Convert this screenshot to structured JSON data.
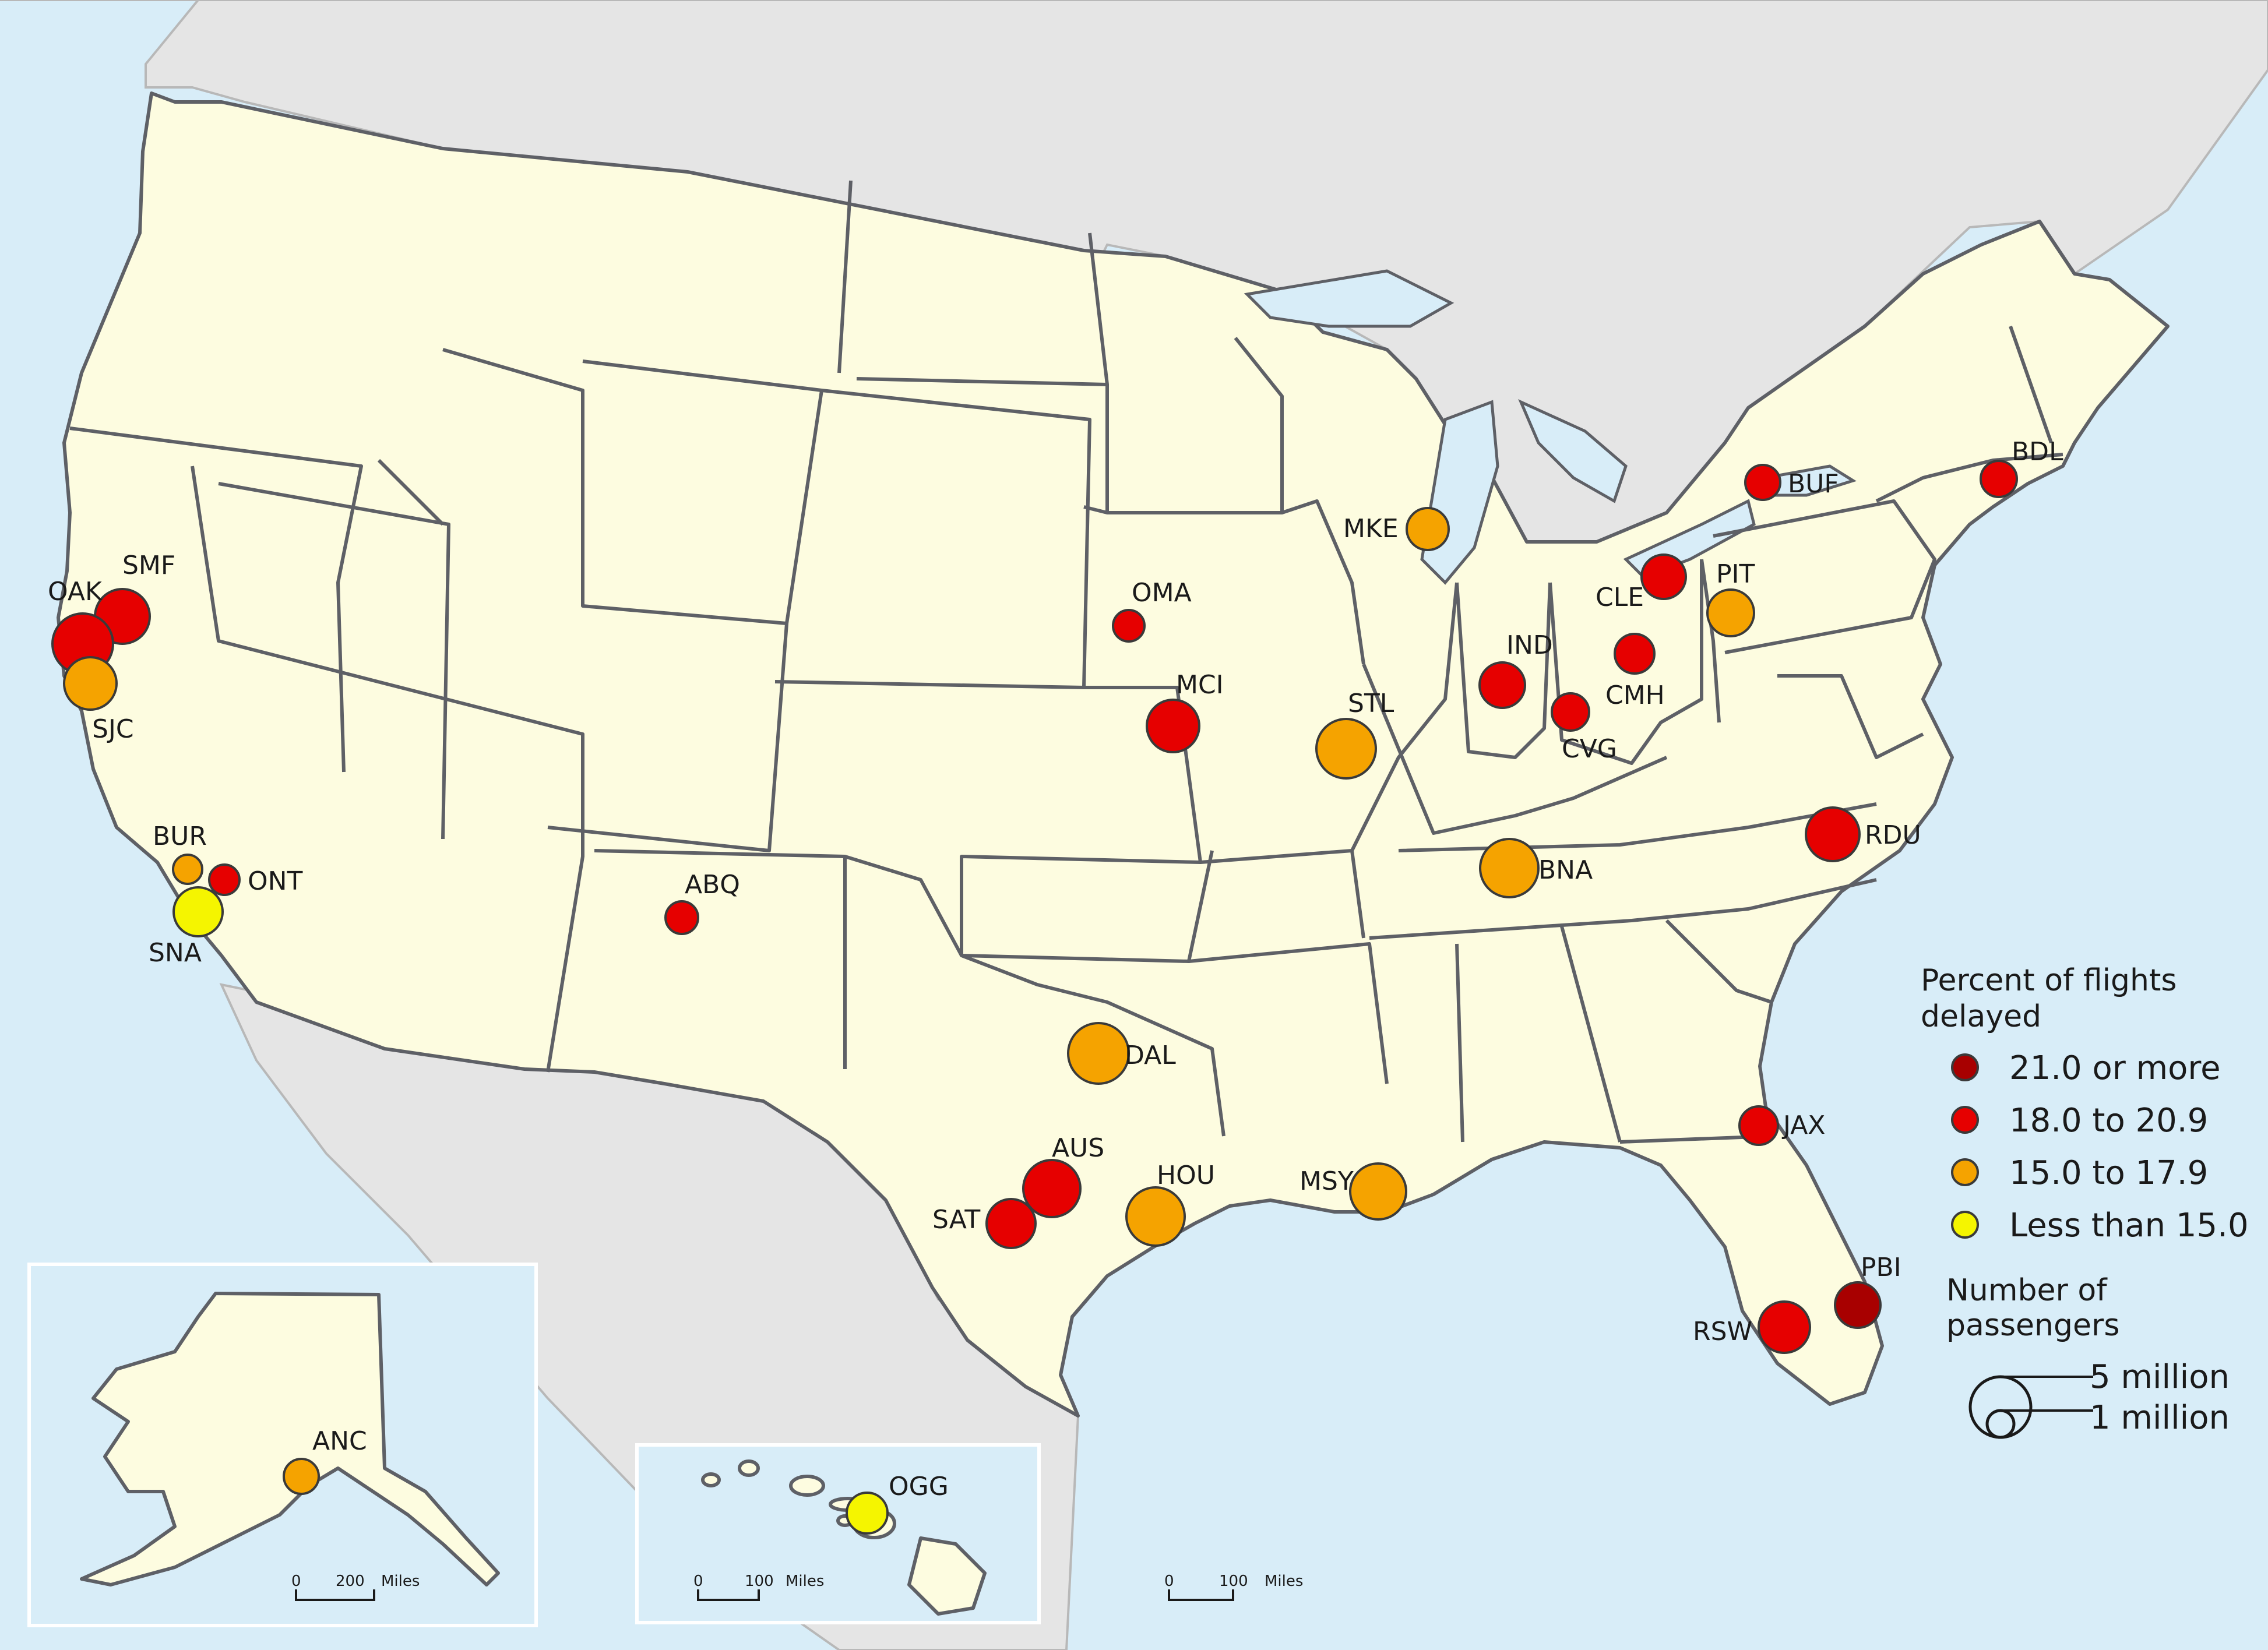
{
  "legend": {
    "color_title": "Percent of flights delayed",
    "color_title_line1": "Percent of flights",
    "color_title_line2": "delayed",
    "classes": [
      {
        "label": "21.0 or more",
        "color": "#a80000"
      },
      {
        "label": "18.0 to 20.9",
        "color": "#e60000"
      },
      {
        "label": "15.0 to 17.9",
        "color": "#f5a300"
      },
      {
        "label": "Less than 15.0",
        "color": "#f5f500"
      }
    ],
    "size_title_line1": "Number of",
    "size_title_line2": "passengers",
    "size_large": "5 million",
    "size_small": "1 million"
  },
  "scales": {
    "alaska": {
      "zero": "0",
      "distance": "200",
      "unit": "Miles"
    },
    "hawaii": {
      "zero": "0",
      "distance": "100",
      "unit": "Miles"
    },
    "mainland": {
      "zero": "0",
      "distance": "100",
      "unit": "Miles"
    }
  },
  "airports": [
    {
      "code": "SMF",
      "delay_class": "18.0 to 20.9"
    },
    {
      "code": "OAK",
      "delay_class": "18.0 to 20.9"
    },
    {
      "code": "SJC",
      "delay_class": "15.0 to 17.9"
    },
    {
      "code": "BUR",
      "delay_class": "15.0 to 17.9"
    },
    {
      "code": "ONT",
      "delay_class": "18.0 to 20.9"
    },
    {
      "code": "SNA",
      "delay_class": "Less than 15.0"
    },
    {
      "code": "ABQ",
      "delay_class": "18.0 to 20.9"
    },
    {
      "code": "OMA",
      "delay_class": "18.0 to 20.9"
    },
    {
      "code": "MCI",
      "delay_class": "18.0 to 20.9"
    },
    {
      "code": "MKE",
      "delay_class": "15.0 to 17.9"
    },
    {
      "code": "STL",
      "delay_class": "15.0 to 17.9"
    },
    {
      "code": "IND",
      "delay_class": "18.0 to 20.9"
    },
    {
      "code": "CVG",
      "delay_class": "18.0 to 20.9"
    },
    {
      "code": "CMH",
      "delay_class": "18.0 to 20.9"
    },
    {
      "code": "CLE",
      "delay_class": "18.0 to 20.9"
    },
    {
      "code": "PIT",
      "delay_class": "15.0 to 17.9"
    },
    {
      "code": "BUF",
      "delay_class": "18.0 to 20.9"
    },
    {
      "code": "BDL",
      "delay_class": "18.0 to 20.9"
    },
    {
      "code": "BNA",
      "delay_class": "15.0 to 17.9"
    },
    {
      "code": "RDU",
      "delay_class": "18.0 to 20.9"
    },
    {
      "code": "DAL",
      "delay_class": "15.0 to 17.9"
    },
    {
      "code": "AUS",
      "delay_class": "18.0 to 20.9"
    },
    {
      "code": "SAT",
      "delay_class": "18.0 to 20.9"
    },
    {
      "code": "HOU",
      "delay_class": "15.0 to 17.9"
    },
    {
      "code": "MSY",
      "delay_class": "15.0 to 17.9"
    },
    {
      "code": "JAX",
      "delay_class": "18.0 to 20.9"
    },
    {
      "code": "PBI",
      "delay_class": "21.0 or more"
    },
    {
      "code": "RSW",
      "delay_class": "18.0 to 20.9"
    },
    {
      "code": "ANC",
      "delay_class": "15.0 to 17.9"
    },
    {
      "code": "OGG",
      "delay_class": "Less than 15.0"
    }
  ]
}
